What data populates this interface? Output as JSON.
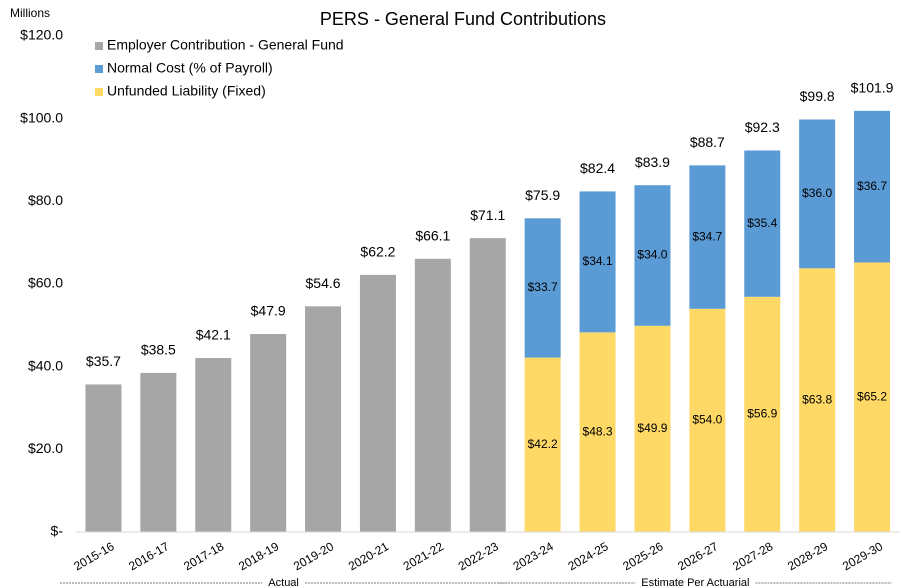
{
  "chart_data": {
    "type": "stacked-bar",
    "title": "PERS - General Fund Contributions",
    "y_unit_label": "Millions",
    "categories": [
      "2015-16",
      "2016-17",
      "2017-18",
      "2018-19",
      "2019-20",
      "2020-21",
      "2021-22",
      "2022-23",
      "2023-24",
      "2024-25",
      "2025-26",
      "2026-27",
      "2027-28",
      "2028-29",
      "2029-30"
    ],
    "series": [
      {
        "name": "Employer Contribution - General Fund",
        "color": "#a6a6a6",
        "label_position": "above",
        "values": [
          35.7,
          38.5,
          42.1,
          47.9,
          54.6,
          62.2,
          66.1,
          71.1,
          null,
          null,
          null,
          null,
          null,
          null,
          null
        ],
        "value_labels": [
          "$35.7",
          "$38.5",
          "$42.1",
          "$47.9",
          "$54.6",
          "$62.2",
          "$66.1",
          "$71.1",
          null,
          null,
          null,
          null,
          null,
          null,
          null
        ]
      },
      {
        "name": "Normal Cost (% of Payroll)",
        "color": "#5b9bd5",
        "label_position": "inside",
        "values": [
          null,
          null,
          null,
          null,
          null,
          null,
          null,
          null,
          33.7,
          34.1,
          34.0,
          34.7,
          35.4,
          36.0,
          36.7
        ],
        "value_labels": [
          null,
          null,
          null,
          null,
          null,
          null,
          null,
          null,
          "$33.7",
          "$34.1",
          "$34.0",
          "$34.7",
          "$35.4",
          "$36.0",
          "$36.7"
        ]
      },
      {
        "name": "Unfunded Liability (Fixed)",
        "color": "#ffd966",
        "label_position": "inside",
        "values": [
          null,
          null,
          null,
          null,
          null,
          null,
          null,
          null,
          42.2,
          48.3,
          49.9,
          54.0,
          56.9,
          63.8,
          65.2
        ],
        "value_labels": [
          null,
          null,
          null,
          null,
          null,
          null,
          null,
          null,
          "$42.2",
          "$48.3",
          "$49.9",
          "$54.0",
          "$56.9",
          "$63.8",
          "$65.2"
        ]
      }
    ],
    "stack_order": [
      0,
      2,
      1
    ],
    "total_labels": [
      null,
      null,
      null,
      null,
      null,
      null,
      null,
      null,
      "$75.9",
      "$82.4",
      "$83.9",
      "$88.7",
      "$92.3",
      "$99.8",
      "$101.9"
    ],
    "ylim": [
      0,
      120
    ],
    "yticks": [
      {
        "value": 0,
        "label": "$-"
      },
      {
        "value": 20,
        "label": "$20.0"
      },
      {
        "value": 40,
        "label": "$40.0"
      },
      {
        "value": 60,
        "label": "$60.0"
      },
      {
        "value": 80,
        "label": "$80.0"
      },
      {
        "value": 100,
        "label": "$100.0"
      },
      {
        "value": 120,
        "label": "$120.0"
      }
    ],
    "grid": false,
    "legend": "top-left",
    "groups": [
      {
        "label": "Actual",
        "from": 0,
        "to": 7
      },
      {
        "label": "Estimate Per Actuarial",
        "from": 8,
        "to": 14
      }
    ]
  }
}
